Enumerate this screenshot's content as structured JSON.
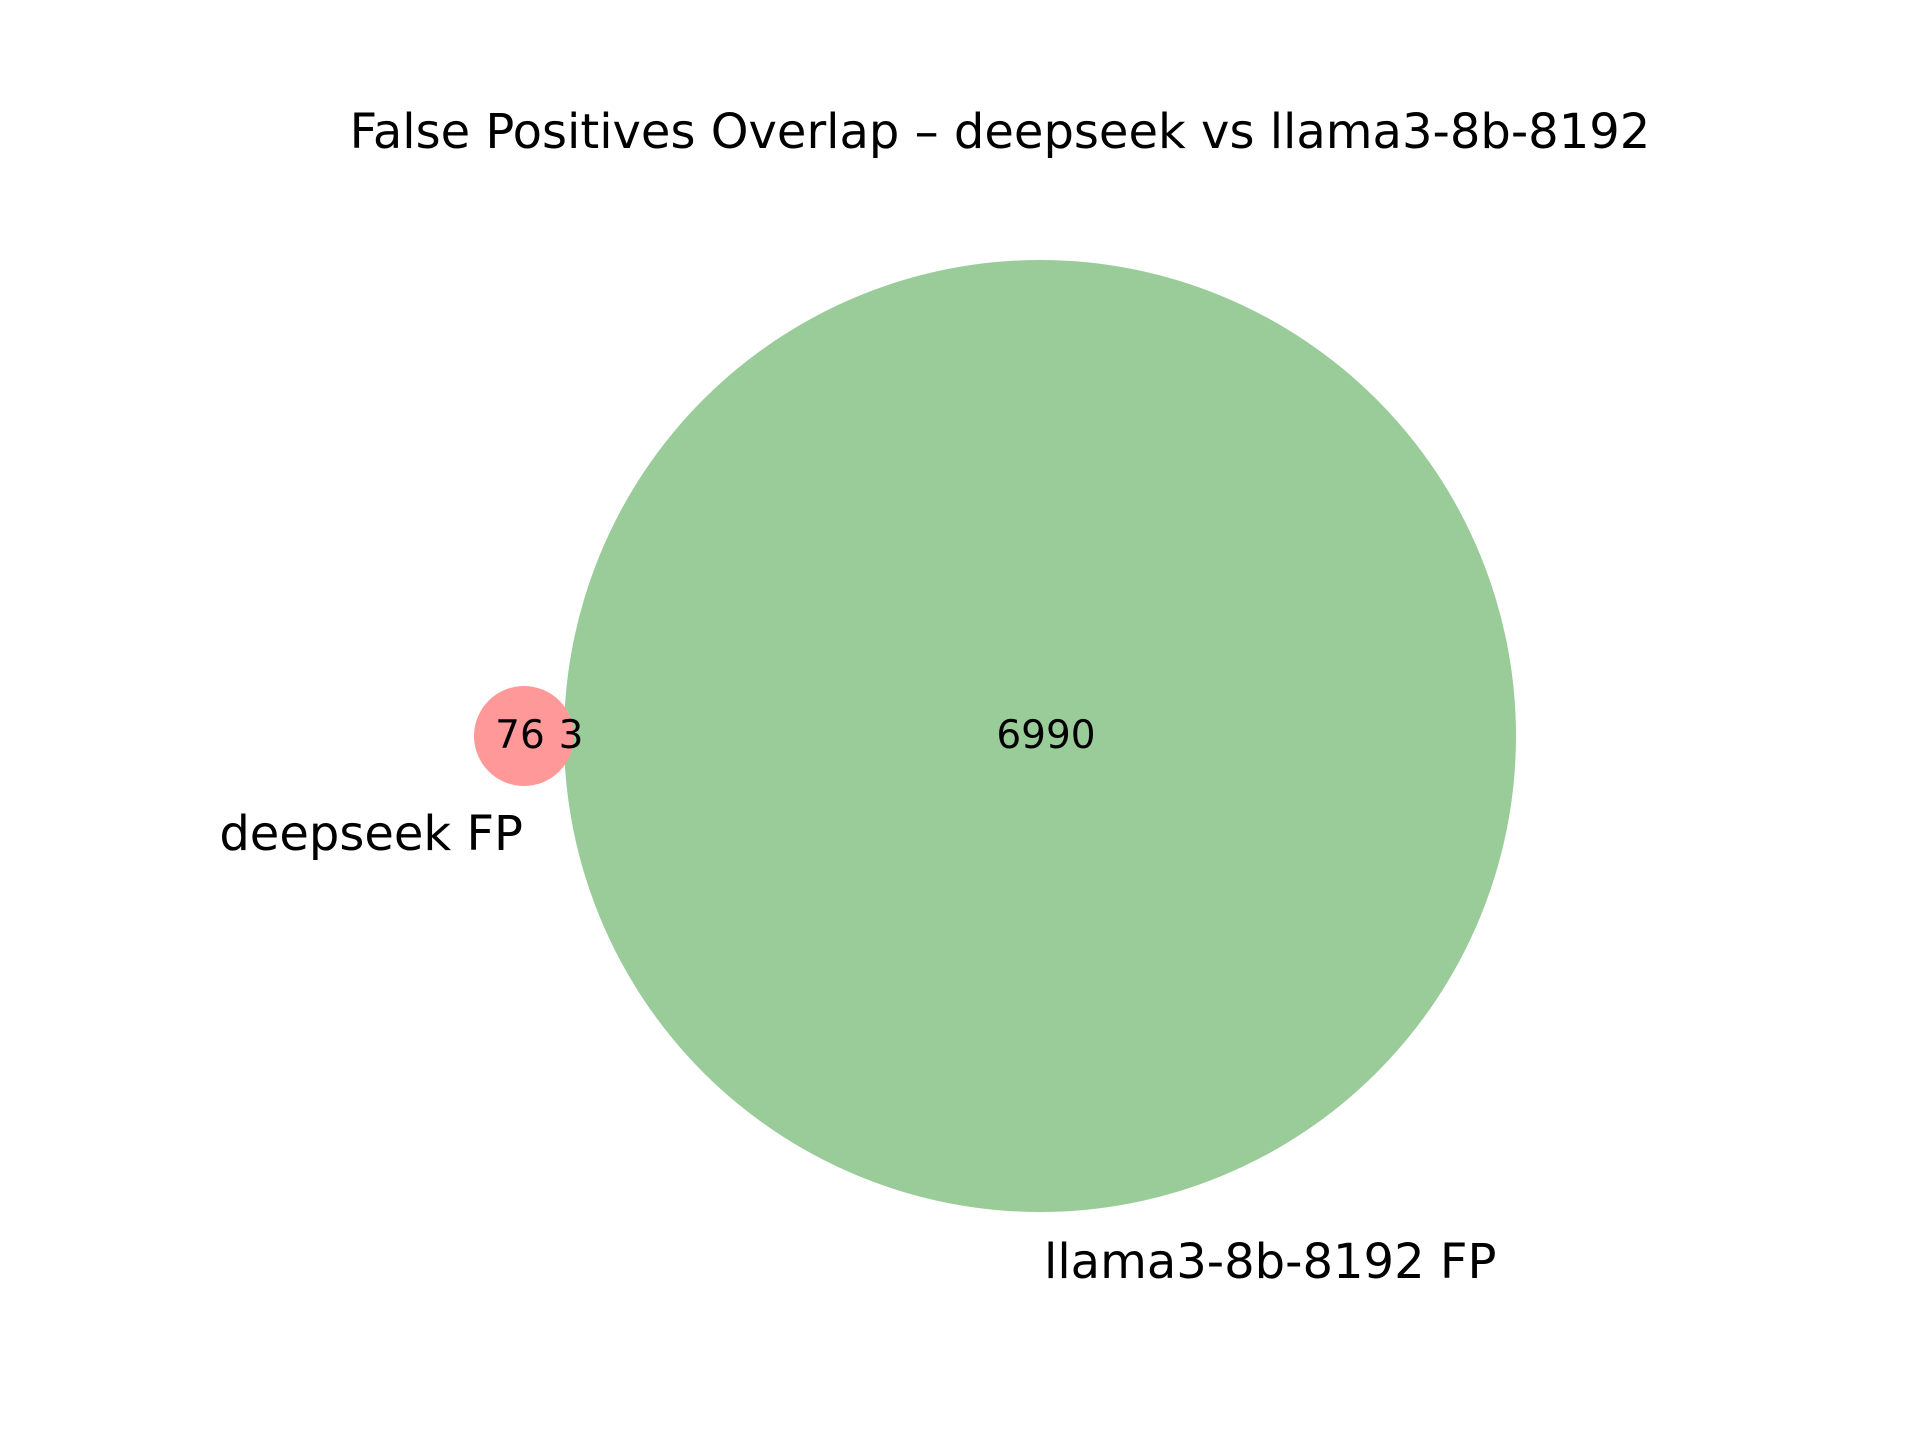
{
  "chart_data": {
    "type": "venn",
    "title": "False Positives Overlap – deepseek vs llama3-8b-8192",
    "sets": [
      {
        "name": "deepseek FP",
        "size": 79,
        "color": "#ff9999"
      },
      {
        "name": "llama3-8b-8192 FP",
        "size": 6993,
        "color": "#99cc99"
      }
    ],
    "regions": {
      "only_a": 76,
      "intersection": 3,
      "only_b": 6990
    },
    "labels": {
      "only_a": "76",
      "intersection": "3",
      "only_b": "6990"
    }
  }
}
